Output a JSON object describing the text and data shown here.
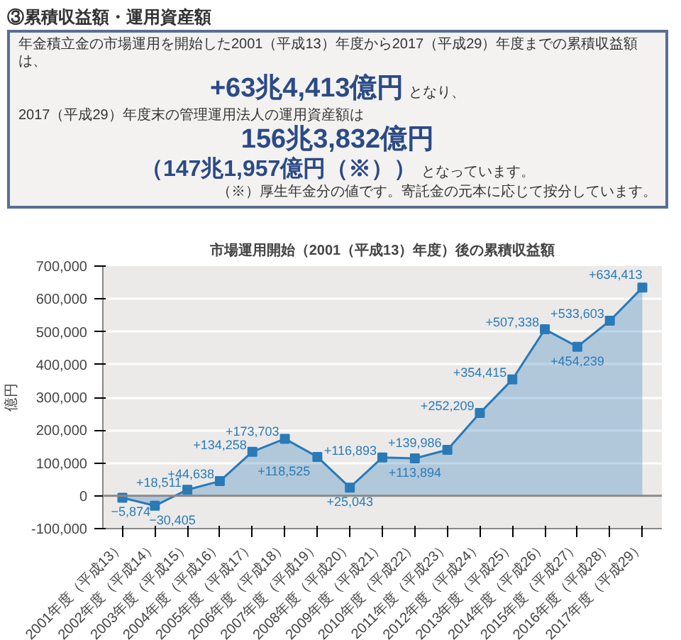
{
  "chart_data": [
    {
      "type": "other",
      "title": "③累積収益額・運用資産額",
      "annotations": [
        "年金積立金の市場運用を開始した2001（平成13）年度から2017（平成29）年度までの累積収益額は、",
        "+63兆4,413億円",
        "となり、",
        "2017（平成29）年度末の管理運用法人の運用資産額は",
        "156兆3,832億円",
        "（147兆1,957億円（※））",
        "となっています。",
        "（※）厚生年金分の値です。寄託金の元本に応じて按分しています。"
      ]
    },
    {
      "type": "area",
      "title": "市場運用開始（2001（平成13）年度）後の累積収益額",
      "ylabel": "億円",
      "categories": [
        "2001年度（平成13）",
        "2002年度（平成14）",
        "2003年度（平成15）",
        "2004年度（平成16）",
        "2005年度（平成17）",
        "2006年度（平成18）",
        "2007年度（平成19）",
        "2008年度（平成20）",
        "2009年度（平成21）",
        "2010年度（平成22）",
        "2011年度（平成23）",
        "2012年度（平成24）",
        "2013年度（平成25）",
        "2014年度（平成26）",
        "2015年度（平成27）",
        "2016年度（平成28）",
        "2017年度（平成29）"
      ],
      "series": [
        {
          "color": "#2a7ab8",
          "values": [
            -5874,
            -30405,
            18511,
            44638,
            134258,
            173703,
            118525,
            25043,
            116893,
            113894,
            139986,
            252209,
            354415,
            507338,
            454239,
            533603,
            634413
          ],
          "value_labels": [
            "−5,874",
            "−30,405",
            "+18,511",
            "+44,638",
            "+134,258",
            "+173,703",
            "+118,525",
            "+25,043",
            "+116,893",
            "+113,894",
            "+139,986",
            "+252,209",
            "+354,415",
            "+507,338",
            "+454,239",
            "+533,603",
            "+634,413"
          ]
        }
      ],
      "ylim": [
        -100000,
        700000
      ],
      "yticks": [
        {
          "value": -100000,
          "label": "-100,000"
        },
        {
          "value": 0,
          "label": "0"
        },
        {
          "value": 100000,
          "label": "100,000"
        },
        {
          "value": 200000,
          "label": "200,000"
        },
        {
          "value": 300000,
          "label": "300,000"
        },
        {
          "value": 400000,
          "label": "400,000"
        },
        {
          "value": 500000,
          "label": "500,000"
        },
        {
          "value": 600000,
          "label": "600,000"
        },
        {
          "value": 700000,
          "label": "700,000"
        }
      ],
      "grid": "y",
      "marker": "square"
    }
  ]
}
